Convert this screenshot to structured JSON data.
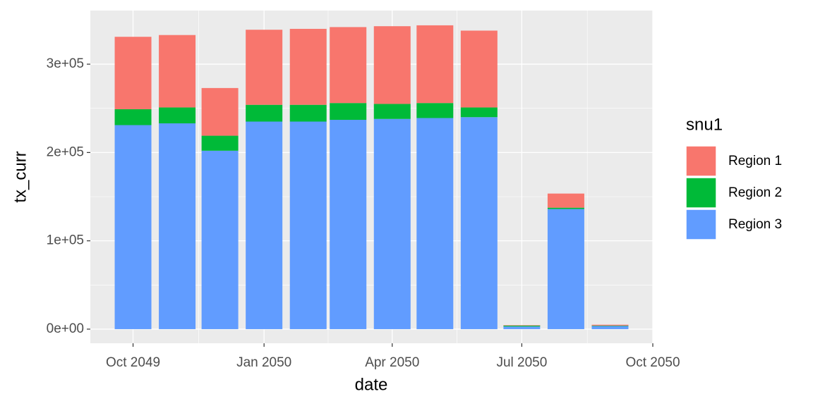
{
  "chart_data": {
    "type": "bar",
    "stacked": true,
    "x_label": "date",
    "y_label": "tx_curr",
    "legend_title": "snu1",
    "legend_position": "right",
    "x": [
      "2049-10",
      "2049-11",
      "2049-12",
      "2050-01",
      "2050-02",
      "2050-03",
      "2050-04",
      "2050-05",
      "2050-06",
      "2050-07",
      "2050-08",
      "2050-09"
    ],
    "series": [
      {
        "name": "Region 1",
        "color": "#F8766D",
        "values": [
          82000,
          82000,
          54000,
          85000,
          86000,
          86000,
          88000,
          88000,
          87000,
          500,
          16000,
          1000
        ]
      },
      {
        "name": "Region 2",
        "color": "#00BA38",
        "values": [
          18000,
          18000,
          17000,
          19000,
          19000,
          19000,
          17000,
          17000,
          11000,
          1000,
          1500,
          500
        ]
      },
      {
        "name": "Region 3",
        "color": "#619CFF",
        "values": [
          231000,
          233000,
          202000,
          235000,
          235000,
          237000,
          238000,
          239000,
          240000,
          3000,
          136000,
          3500
        ]
      }
    ],
    "xlim": [
      "2049-09",
      "2050-10"
    ],
    "xticks": [
      {
        "value": "2049-10",
        "label": "Oct 2049"
      },
      {
        "value": "2050-01",
        "label": "Jan 2050"
      },
      {
        "value": "2050-04",
        "label": "Apr 2050"
      },
      {
        "value": "2050-07",
        "label": "Jul 2050"
      },
      {
        "value": "2050-10",
        "label": "Oct 2050"
      }
    ],
    "ylim": [
      -16000,
      360700
    ],
    "yticks": [
      {
        "value": 0,
        "label": "0e+00"
      },
      {
        "value": 100000,
        "label": "1e+05"
      },
      {
        "value": 200000,
        "label": "2e+05"
      },
      {
        "value": 300000,
        "label": "3e+05"
      }
    ],
    "grid": true
  }
}
